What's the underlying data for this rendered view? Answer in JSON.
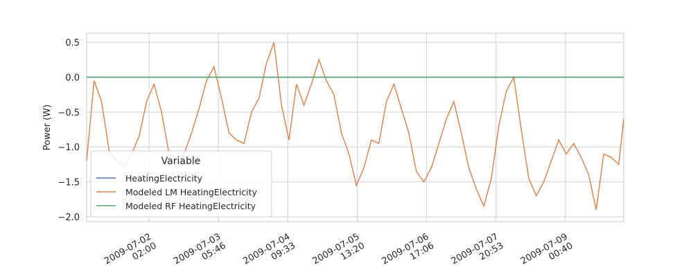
{
  "chart_data": {
    "type": "line",
    "y_label": "Power (W)",
    "legend_title": "Variable",
    "legend": "lower left",
    "grid": true,
    "ylim": [
      -2.07,
      0.63
    ],
    "yticks": [
      0.5,
      0.0,
      -0.5,
      -1.0,
      -1.5,
      -2.0
    ],
    "y_tick_labels": [
      "0.5",
      "0.0",
      "−0.5",
      "−1.0",
      "−1.5",
      "−2.0"
    ],
    "xlim": [
      "2009-07-01 01:00",
      "2009-07-10 00:00"
    ],
    "xticks": [
      {
        "value": "2009-07-02 02:00",
        "label": "2009-07-02\n02:00"
      },
      {
        "value": "2009-07-03 05:46",
        "label": "2009-07-03\n05:46"
      },
      {
        "value": "2009-07-04 09:33",
        "label": "2009-07-04\n09:33"
      },
      {
        "value": "2009-07-05 13:20",
        "label": "2009-07-05\n13:20"
      },
      {
        "value": "2009-07-06 17:06",
        "label": "2009-07-06\n17:06"
      },
      {
        "value": "2009-07-07 20:53",
        "label": "2009-07-07\n20:53"
      },
      {
        "value": "2009-07-09 00:40",
        "label": "2009-07-09\n00:40"
      }
    ],
    "x": [
      "2009-07-01 01:00",
      "2009-07-01 04:00",
      "2009-07-01 07:00",
      "2009-07-01 10:00",
      "2009-07-01 13:00",
      "2009-07-01 16:00",
      "2009-07-01 19:00",
      "2009-07-01 22:00",
      "2009-07-02 01:00",
      "2009-07-02 04:00",
      "2009-07-02 07:00",
      "2009-07-02 10:00",
      "2009-07-02 13:00",
      "2009-07-02 16:00",
      "2009-07-02 19:00",
      "2009-07-02 22:00",
      "2009-07-03 01:00",
      "2009-07-03 04:00",
      "2009-07-03 07:00",
      "2009-07-03 10:00",
      "2009-07-03 13:00",
      "2009-07-03 16:00",
      "2009-07-03 19:00",
      "2009-07-03 22:00",
      "2009-07-04 01:00",
      "2009-07-04 04:00",
      "2009-07-04 07:00",
      "2009-07-04 10:00",
      "2009-07-04 13:00",
      "2009-07-04 16:00",
      "2009-07-04 19:00",
      "2009-07-04 22:00",
      "2009-07-05 01:00",
      "2009-07-05 04:00",
      "2009-07-05 07:00",
      "2009-07-05 10:00",
      "2009-07-05 13:00",
      "2009-07-05 16:00",
      "2009-07-05 19:00",
      "2009-07-05 22:00",
      "2009-07-06 01:00",
      "2009-07-06 04:00",
      "2009-07-06 07:00",
      "2009-07-06 10:00",
      "2009-07-06 13:00",
      "2009-07-06 16:00",
      "2009-07-06 19:00",
      "2009-07-06 22:00",
      "2009-07-07 01:00",
      "2009-07-07 04:00",
      "2009-07-07 07:00",
      "2009-07-07 10:00",
      "2009-07-07 13:00",
      "2009-07-07 16:00",
      "2009-07-07 19:00",
      "2009-07-07 22:00",
      "2009-07-08 01:00",
      "2009-07-08 04:00",
      "2009-07-08 07:00",
      "2009-07-08 10:00",
      "2009-07-08 13:00",
      "2009-07-08 16:00",
      "2009-07-08 19:00",
      "2009-07-08 22:00",
      "2009-07-09 01:00",
      "2009-07-09 04:00",
      "2009-07-09 07:00",
      "2009-07-09 10:00",
      "2009-07-09 13:00",
      "2009-07-09 16:00",
      "2009-07-09 19:00",
      "2009-07-09 22:00",
      "2009-07-10 00:00"
    ],
    "series": [
      {
        "name": "HeatingElectricity",
        "color": "#4c72b0",
        "values": [
          0,
          0,
          0,
          0,
          0,
          0,
          0,
          0,
          0,
          0,
          0,
          0,
          0,
          0,
          0,
          0,
          0,
          0,
          0,
          0,
          0,
          0,
          0,
          0,
          0,
          0,
          0,
          0,
          0,
          0,
          0,
          0,
          0,
          0,
          0,
          0,
          0,
          0,
          0,
          0,
          0,
          0,
          0,
          0,
          0,
          0,
          0,
          0,
          0,
          0,
          0,
          0,
          0,
          0,
          0,
          0,
          0,
          0,
          0,
          0,
          0,
          0,
          0,
          0,
          0,
          0,
          0,
          0,
          0,
          0,
          0,
          0,
          0
        ]
      },
      {
        "name": "Modeled LM HeatingElectricity",
        "color": "#dd8452",
        "values": [
          -1.2,
          -0.05,
          -0.35,
          -1.05,
          -1.2,
          -1.28,
          -1.1,
          -0.85,
          -0.35,
          -0.1,
          -0.5,
          -1.1,
          -1.3,
          -1.1,
          -0.8,
          -0.45,
          -0.05,
          0.15,
          -0.3,
          -0.8,
          -0.9,
          -0.95,
          -0.5,
          -0.3,
          0.2,
          0.5,
          -0.4,
          -0.9,
          -0.1,
          -0.4,
          -0.1,
          0.25,
          -0.05,
          -0.25,
          -0.8,
          -1.1,
          -1.55,
          -1.3,
          -0.9,
          -0.95,
          -0.35,
          -0.1,
          -0.45,
          -0.8,
          -1.35,
          -1.5,
          -1.3,
          -0.95,
          -0.6,
          -0.35,
          -0.8,
          -1.3,
          -1.6,
          -1.85,
          -1.45,
          -0.7,
          -0.2,
          0.0,
          -0.75,
          -1.45,
          -1.7,
          -1.5,
          -1.2,
          -0.9,
          -1.1,
          -0.95,
          -1.15,
          -1.4,
          -1.9,
          -1.1,
          -1.15,
          -1.25,
          -0.6
        ]
      },
      {
        "name": "Modeled RF HeatingElectricity",
        "color": "#55a868",
        "values": [
          0,
          0,
          0,
          0,
          0,
          0,
          0,
          0,
          0,
          0,
          0,
          0,
          0,
          0,
          0,
          0,
          0,
          0,
          0,
          0,
          0,
          0,
          0,
          0,
          0,
          0,
          0,
          0,
          0,
          0,
          0,
          0,
          0,
          0,
          0,
          0,
          0,
          0,
          0,
          0,
          0,
          0,
          0,
          0,
          0,
          0,
          0,
          0,
          0,
          0,
          0,
          0,
          0,
          0,
          0,
          0,
          0,
          0,
          0,
          0,
          0,
          0,
          0,
          0,
          0,
          0,
          0,
          0,
          0,
          0,
          0,
          0,
          0
        ]
      }
    ]
  }
}
